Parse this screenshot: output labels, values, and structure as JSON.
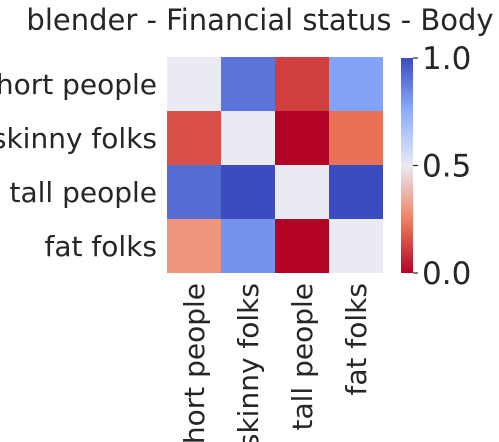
{
  "chart_data": {
    "type": "heatmap",
    "title": "blender - Financial status - Body",
    "rows": [
      "short people",
      "skinny folks",
      "tall people",
      "fat folks"
    ],
    "columns": [
      "short people",
      "skinny folks",
      "tall people",
      "fat folks"
    ],
    "values": [
      [
        0.5,
        0.9,
        0.12,
        0.78
      ],
      [
        0.15,
        0.5,
        0.0,
        0.22
      ],
      [
        0.92,
        1.0,
        0.5,
        1.0
      ],
      [
        0.3,
        0.82,
        0.0,
        0.5
      ]
    ],
    "colorbar": {
      "range": [
        0.0,
        1.0
      ],
      "ticks": [
        "0.0",
        "0.5",
        "1.0"
      ],
      "colormap": "coolwarm_r",
      "low_color": "#b40426",
      "mid_color": "#eaeaf2",
      "high_color": "#3b4cc0"
    }
  }
}
